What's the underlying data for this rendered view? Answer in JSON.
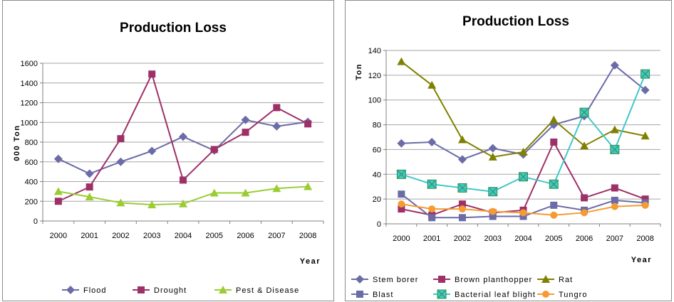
{
  "chart_data": [
    {
      "type": "line",
      "title": "Production Loss",
      "xlabel": "Year",
      "ylabel": "000 Ton",
      "ylim": [
        0,
        1600
      ],
      "yticks": [
        0,
        200,
        400,
        600,
        800,
        1000,
        1200,
        1400,
        1600
      ],
      "grid": true,
      "legend_position": "bottom",
      "categories": [
        "2000",
        "2001",
        "2002",
        "2003",
        "2004",
        "2005",
        "2006",
        "2007",
        "2008"
      ],
      "series": [
        {
          "name": "Flood",
          "color": "#6b6ba8",
          "marker": "diamond",
          "values": [
            630,
            480,
            600,
            710,
            855,
            715,
            1025,
            960,
            1005
          ]
        },
        {
          "name": "Drought",
          "color": "#9e3068",
          "marker": "square",
          "values": [
            200,
            345,
            835,
            1490,
            415,
            725,
            900,
            1150,
            985
          ]
        },
        {
          "name": "Pest & Disease",
          "color": "#9acd32",
          "marker": "triangle",
          "values": [
            300,
            245,
            185,
            165,
            175,
            285,
            285,
            330,
            350
          ]
        }
      ]
    },
    {
      "type": "line",
      "title": "Production Loss",
      "xlabel": "Year",
      "ylabel": "Ton",
      "ylim": [
        0,
        140
      ],
      "yticks": [
        0,
        20,
        40,
        60,
        80,
        100,
        120,
        140
      ],
      "grid": true,
      "legend_position": "bottom",
      "categories": [
        "2000",
        "2001",
        "2002",
        "2003",
        "2004",
        "2005",
        "2006",
        "2007",
        "2008"
      ],
      "series": [
        {
          "name": "Stem borer",
          "color": "#6b6ba8",
          "marker": "diamond",
          "values": [
            65,
            66,
            52,
            61,
            56,
            80,
            87,
            128,
            108
          ]
        },
        {
          "name": "Brown planthopper",
          "color": "#9e3068",
          "marker": "square",
          "values": [
            12,
            7,
            16,
            9,
            11,
            66,
            21,
            29,
            20
          ]
        },
        {
          "name": "Rat",
          "color": "#808000",
          "marker": "triangle",
          "values": [
            131,
            112,
            68,
            54,
            58,
            84,
            63,
            76,
            71
          ]
        },
        {
          "name": "Blast",
          "color": "#6b6ba8",
          "marker": "square",
          "values": [
            24,
            5,
            5,
            6,
            6,
            15,
            11,
            19,
            17
          ]
        },
        {
          "name": "Bacterial leaf blight",
          "color": "#40c8c8",
          "marker": "xsquare",
          "values": [
            40,
            32,
            29,
            26,
            38,
            32,
            90,
            60,
            121
          ]
        },
        {
          "name": "Tungro",
          "color": "#f59b32",
          "marker": "circle",
          "values": [
            16,
            12,
            12,
            10,
            9,
            7,
            9,
            14,
            15
          ]
        }
      ]
    }
  ]
}
